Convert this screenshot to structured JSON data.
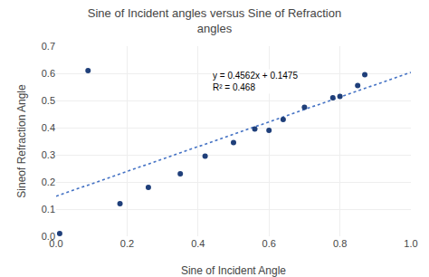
{
  "chart_data": {
    "type": "scatter",
    "title": "Sine of Incident angles versus Sine of Refraction\nangles",
    "xlabel": "Sine of Incident Angle",
    "ylabel": "Sineof Refraction Angle",
    "x": [
      0.01,
      0.09,
      0.18,
      0.26,
      0.35,
      0.42,
      0.5,
      0.56,
      0.6,
      0.64,
      0.7,
      0.78,
      0.8,
      0.85,
      0.87
    ],
    "values": [
      0.01,
      0.61,
      0.12,
      0.18,
      0.23,
      0.295,
      0.345,
      0.395,
      0.39,
      0.43,
      0.475,
      0.51,
      0.515,
      0.555,
      0.595
    ],
    "color": "#1F3F7A",
    "trendline": {
      "x": [
        0,
        1.0
      ],
      "values": [
        0.1475,
        0.6037
      ],
      "color": "#4472C4",
      "line_style": "dotted"
    },
    "annotations": [
      {
        "text": "y = 0.4562x + 0.1475\nR² = 0.468"
      }
    ],
    "xlim": [
      0,
      1
    ],
    "ylim": [
      0,
      0.7
    ],
    "xticks": [
      {
        "value": 0,
        "label": "0.0"
      },
      0.2,
      0.4,
      0.6,
      0.8,
      {
        "value": 1.0,
        "label": "1.0"
      }
    ],
    "yticks": [
      {
        "value": 0,
        "label": "0.0"
      },
      0.1,
      0.2,
      0.3,
      0.4,
      0.5,
      0.6,
      0.7
    ],
    "grid": true
  }
}
